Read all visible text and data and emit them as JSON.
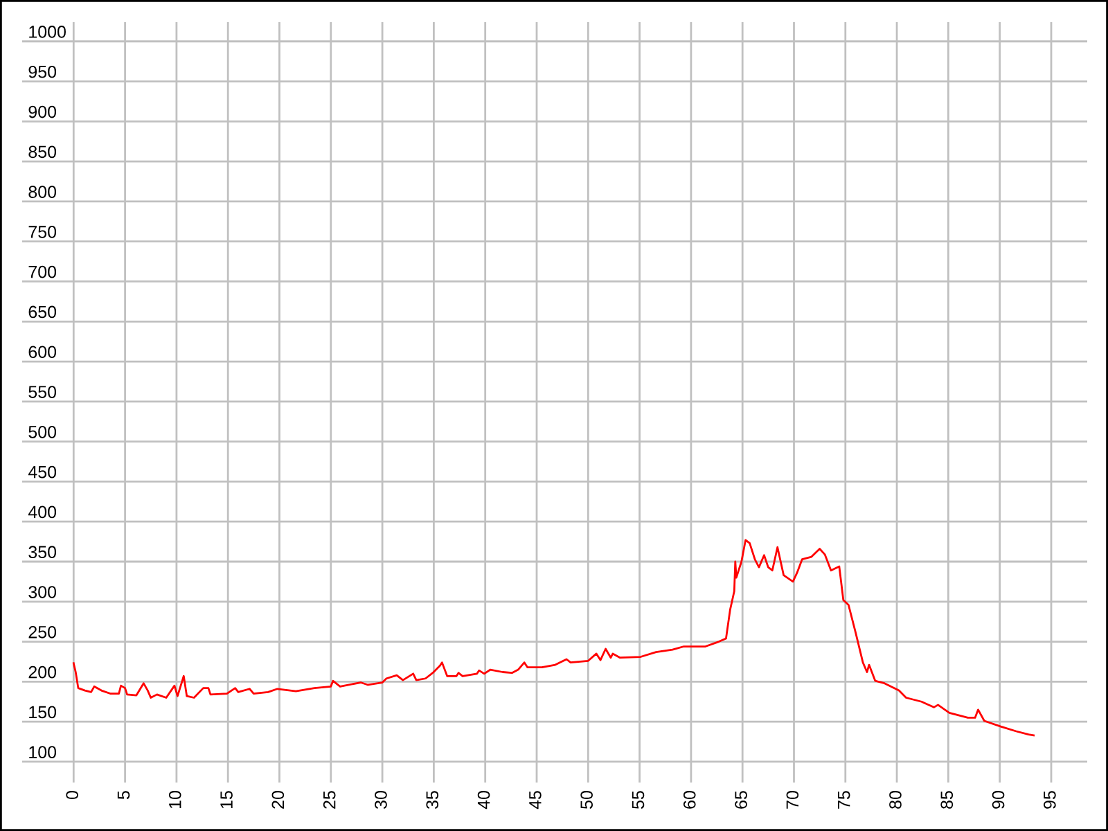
{
  "chart_data": {
    "type": "line",
    "xlim": [
      -5,
      98.5
    ],
    "ylim": [
      74,
      1024
    ],
    "xticks": [
      0,
      5,
      10,
      15,
      20,
      25,
      30,
      35,
      40,
      45,
      50,
      55,
      60,
      65,
      70,
      75,
      80,
      85,
      90,
      95
    ],
    "yticks": [
      100,
      150,
      200,
      250,
      300,
      350,
      400,
      450,
      500,
      550,
      600,
      650,
      700,
      750,
      800,
      850,
      900,
      950,
      1000
    ],
    "grid": true,
    "series": [
      {
        "color": "#ff0000",
        "x": [
          0,
          0.2,
          0.45,
          1.1,
          1.7,
          2.0,
          2.7,
          3.6,
          4.4,
          4.6,
          5.0,
          5.2,
          6.1,
          6.8,
          7.2,
          7.5,
          8.1,
          9.0,
          9.8,
          10.1,
          10.7,
          11.0,
          11.7,
          12.6,
          13.1,
          13.3,
          14.9,
          15.7,
          16.0,
          17.1,
          17.5,
          18.9,
          19.8,
          21.6,
          23.4,
          25.0,
          25.2,
          25.9,
          27.9,
          28.6,
          30.0,
          30.4,
          31.4,
          32.0,
          33.0,
          33.3,
          34.2,
          34.9,
          35.6,
          35.8,
          36.3,
          37.2,
          37.4,
          37.8,
          39.2,
          39.4,
          39.9,
          40.5,
          41.7,
          42.6,
          43.2,
          43.8,
          44.1,
          45.5,
          46.8,
          47.9,
          48.3,
          50,
          50.8,
          51.2,
          51.7,
          52.2,
          52.4,
          53.1,
          55.1,
          56.6,
          58.2,
          59.3,
          61.4,
          62.7,
          63.4,
          63.8,
          64.2,
          64.3,
          64.4,
          64.9,
          65.3,
          65.7,
          66.2,
          66.6,
          67.1,
          67.5,
          67.9,
          68.4,
          69.0,
          69.9,
          70.3,
          70.8,
          71.7,
          72.5,
          73.0,
          73.6,
          74.4,
          74.8,
          75.3,
          76.0,
          76.7,
          77.1,
          77.3,
          77.9,
          78.8,
          80.2,
          80.9,
          82.4,
          83.6,
          84.0,
          85.1,
          86.9,
          87.6,
          87.9,
          88.5,
          90.1,
          91.6,
          92.8,
          93.3
        ],
        "values": [
          223,
          212,
          192,
          189,
          187,
          194,
          189,
          185,
          185,
          195,
          192,
          184,
          183,
          198,
          189,
          180,
          184,
          180,
          195,
          182,
          207,
          182,
          180,
          192,
          192,
          184,
          185,
          192,
          187,
          191,
          185,
          187,
          191,
          188,
          192,
          194,
          201,
          194,
          199,
          196,
          199,
          204,
          208,
          202,
          210,
          202,
          204,
          211,
          220,
          224,
          207,
          207,
          211,
          207,
          210,
          214,
          210,
          215,
          212,
          211,
          215,
          224,
          218,
          218,
          221,
          228,
          224,
          226,
          235,
          227,
          241,
          230,
          235,
          230,
          231,
          237,
          240,
          244,
          244,
          250,
          254,
          290,
          313,
          350,
          330,
          350,
          377,
          373,
          353,
          343,
          358,
          343,
          339,
          368,
          333,
          325,
          336,
          353,
          356,
          366,
          359,
          339,
          344,
          302,
          296,
          261,
          224,
          212,
          221,
          201,
          198,
          189,
          180,
          175,
          168,
          171,
          161,
          155,
          155,
          165,
          151,
          144,
          138,
          134,
          133
        ]
      }
    ]
  }
}
